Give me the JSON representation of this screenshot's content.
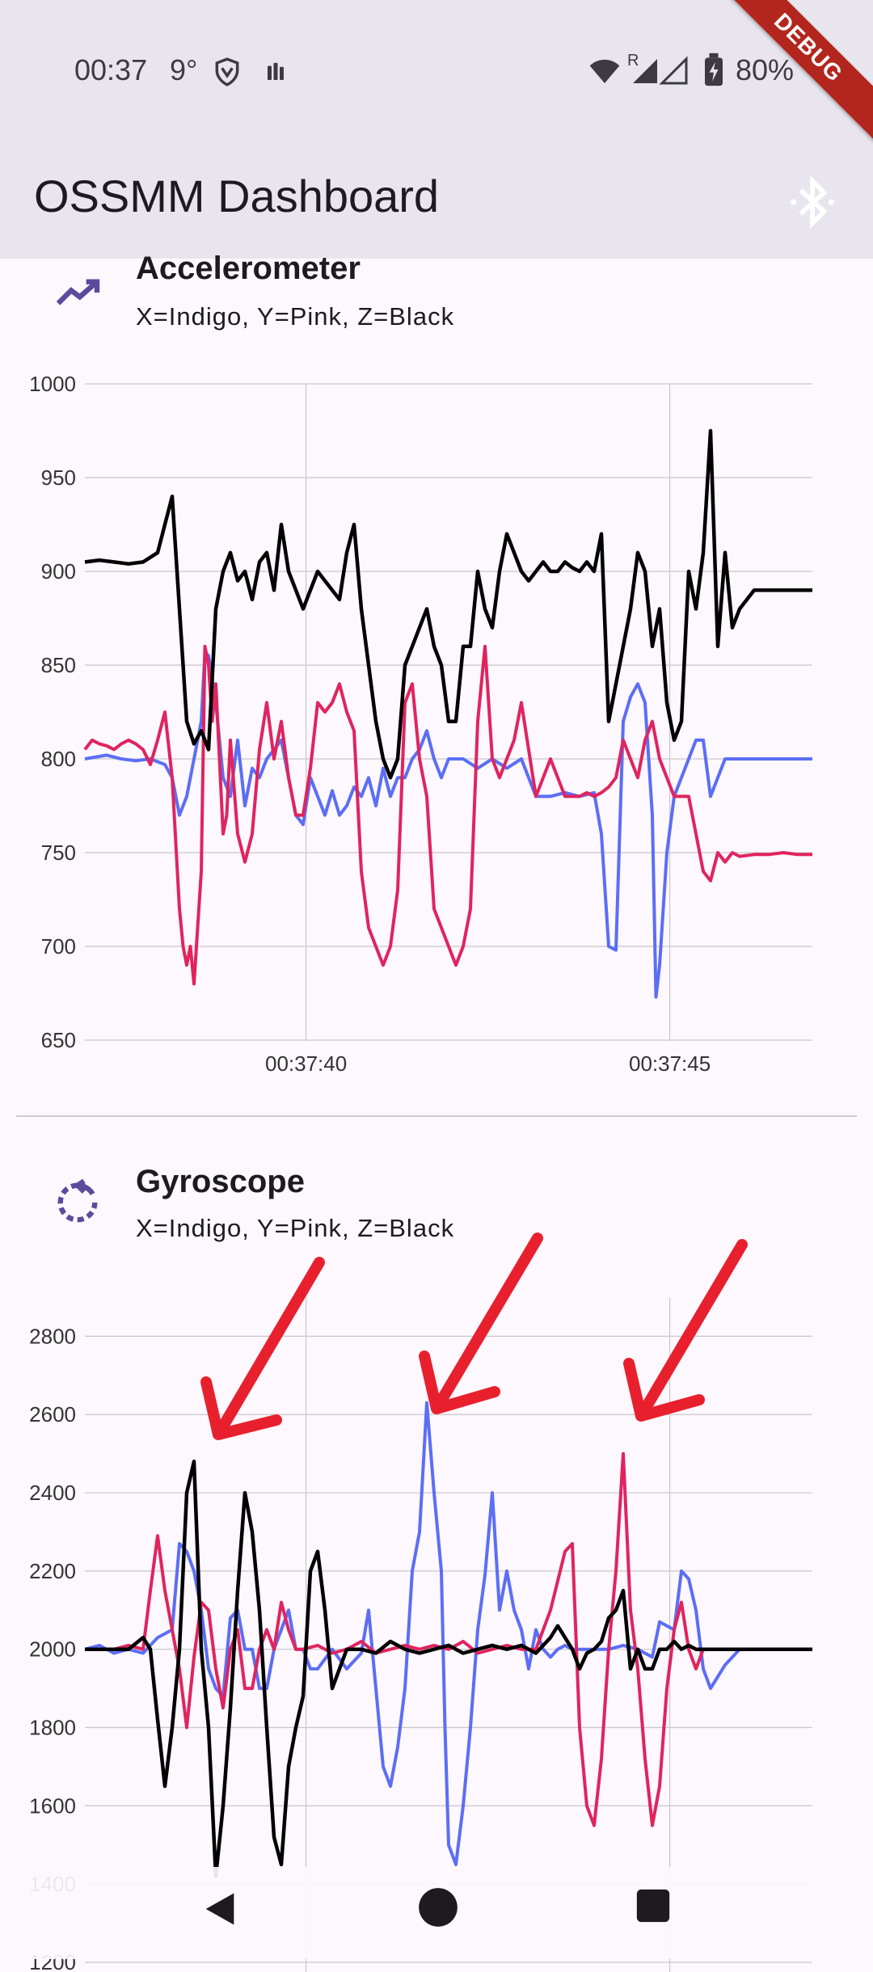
{
  "status_bar": {
    "time": "00:37",
    "temperature": "9°",
    "battery": "80%",
    "roaming": "R",
    "icons": [
      "shield-icon",
      "app-icon",
      "wifi-icon",
      "signal-icon",
      "battery-icon"
    ]
  },
  "debug_banner": "DEBUG",
  "app_bar": {
    "title": "OSSMM Dashboard",
    "action_icon": "bluetooth-icon"
  },
  "accelerometer": {
    "title": "Accelerometer",
    "subtitle": "X=Indigo, Y=Pink, Z=Black",
    "icon": "trending-up-icon"
  },
  "gyroscope": {
    "title": "Gyroscope",
    "subtitle": "X=Indigo, Y=Pink, Z=Black",
    "icon": "rotate-icon"
  },
  "colors": {
    "x": "#5b6ef5",
    "y": "#e0245e",
    "z": "#000000",
    "arrow": "#e8202e",
    "accent": "#5c4a9c"
  },
  "chart_data": [
    {
      "type": "line",
      "title": "Accelerometer",
      "ylim": [
        650,
        1000
      ],
      "yticks": [
        650,
        700,
        750,
        800,
        850,
        900,
        950,
        1000
      ],
      "xlim": [
        0,
        100
      ],
      "xticks": [
        {
          "x": 30.4,
          "label": "00:37:40"
        },
        {
          "x": 80.4,
          "label": "00:37:45"
        }
      ],
      "grid": true,
      "series": [
        {
          "name": "X",
          "color": "#5b6ef5",
          "x": [
            0,
            3,
            5,
            7,
            9,
            11,
            12,
            13,
            14,
            15,
            16,
            16.5,
            17,
            18,
            19,
            20,
            21,
            22,
            23,
            24,
            25,
            26,
            27,
            28,
            29,
            30,
            31,
            32,
            33,
            34,
            35,
            36,
            37,
            38,
            39,
            40,
            41,
            42,
            43,
            44,
            45,
            46,
            47,
            48,
            49,
            50,
            52,
            54,
            56,
            58,
            60,
            62,
            64,
            66,
            68,
            70,
            71,
            72,
            73,
            74,
            75,
            76,
            77,
            78,
            78.5,
            79,
            80,
            81,
            82,
            83,
            84,
            85,
            86,
            88,
            90,
            95,
            100
          ],
          "y": [
            800,
            802,
            800,
            799,
            800,
            797,
            790,
            770,
            780,
            800,
            820,
            857,
            855,
            830,
            790,
            780,
            810,
            775,
            795,
            790,
            800,
            805,
            810,
            790,
            770,
            765,
            790,
            780,
            770,
            783,
            770,
            775,
            785,
            780,
            790,
            775,
            795,
            780,
            790,
            790,
            800,
            805,
            815,
            800,
            790,
            800,
            800,
            795,
            800,
            795,
            800,
            780,
            780,
            782,
            780,
            782,
            760,
            700,
            698,
            820,
            833,
            840,
            830,
            770,
            673,
            690,
            750,
            780,
            790,
            800,
            810,
            810,
            780,
            800,
            800,
            800,
            800
          ]
        },
        {
          "name": "Y",
          "color": "#e0245e",
          "x": [
            0,
            1,
            2,
            3,
            4,
            5,
            6,
            7,
            8,
            9,
            10,
            11,
            12,
            13,
            13.5,
            14,
            14.5,
            15,
            16,
            16.5,
            17,
            17.5,
            18,
            19,
            19.5,
            20,
            21,
            22,
            23,
            24,
            25,
            26,
            27,
            28,
            29,
            30,
            31,
            32,
            33,
            34,
            35,
            36,
            37,
            38,
            39,
            40,
            41,
            42,
            43,
            44,
            45,
            46,
            47,
            48,
            49,
            50,
            51,
            52,
            53,
            54,
            55,
            56,
            57,
            58,
            59,
            60,
            61,
            62,
            63,
            64,
            65,
            66,
            67,
            68,
            69,
            70,
            71,
            72,
            73,
            74,
            75,
            76,
            77,
            78,
            79,
            80,
            81,
            82,
            83,
            84,
            85,
            86,
            87,
            88,
            89,
            90,
            92,
            94,
            96,
            98,
            100
          ],
          "y": [
            805,
            810,
            808,
            807,
            805,
            808,
            810,
            808,
            805,
            797,
            810,
            825,
            790,
            720,
            700,
            690,
            700,
            680,
            740,
            860,
            850,
            820,
            840,
            760,
            770,
            810,
            760,
            745,
            760,
            805,
            830,
            800,
            820,
            790,
            770,
            770,
            795,
            830,
            825,
            830,
            840,
            825,
            815,
            740,
            710,
            700,
            690,
            700,
            730,
            830,
            840,
            800,
            780,
            720,
            710,
            700,
            690,
            700,
            720,
            820,
            860,
            800,
            790,
            800,
            810,
            830,
            805,
            780,
            790,
            800,
            790,
            780,
            780,
            780,
            782,
            780,
            782,
            785,
            790,
            810,
            800,
            790,
            810,
            820,
            800,
            790,
            780,
            780,
            780,
            760,
            740,
            735,
            750,
            745,
            750,
            748,
            749,
            749,
            750,
            749,
            749
          ]
        },
        {
          "name": "Z",
          "color": "#000000",
          "x": [
            0,
            2,
            4,
            6,
            8,
            10,
            12,
            14,
            15,
            16,
            17,
            18,
            19,
            20,
            21,
            22,
            23,
            24,
            25,
            26,
            27,
            28,
            29,
            30,
            31,
            32,
            33,
            34,
            35,
            36,
            37,
            38,
            39,
            40,
            41,
            42,
            43,
            44,
            45,
            46,
            47,
            48,
            49,
            50,
            51,
            52,
            53,
            54,
            55,
            56,
            57,
            58,
            59,
            60,
            61,
            62,
            63,
            64,
            65,
            66,
            67,
            68,
            69,
            70,
            71,
            72,
            73,
            74,
            75,
            76,
            77,
            78,
            79,
            80,
            81,
            82,
            83,
            84,
            85,
            86,
            87,
            88,
            89,
            90,
            92,
            95,
            98,
            100
          ],
          "y": [
            905,
            906,
            905,
            904,
            905,
            910,
            940,
            820,
            808,
            815,
            805,
            880,
            900,
            910,
            895,
            900,
            885,
            905,
            910,
            890,
            925,
            900,
            890,
            880,
            890,
            900,
            895,
            890,
            885,
            910,
            925,
            880,
            850,
            820,
            800,
            790,
            800,
            850,
            860,
            870,
            880,
            860,
            850,
            820,
            820,
            860,
            860,
            900,
            880,
            870,
            900,
            920,
            910,
            900,
            895,
            900,
            905,
            900,
            900,
            905,
            902,
            900,
            905,
            900,
            920,
            820,
            840,
            860,
            880,
            910,
            900,
            860,
            880,
            830,
            810,
            820,
            900,
            880,
            910,
            975,
            860,
            910,
            870,
            880,
            890,
            890,
            890,
            890
          ]
        }
      ]
    },
    {
      "type": "line",
      "title": "Gyroscope",
      "ylim": [
        1200,
        2900
      ],
      "yticks": [
        1200,
        1400,
        1600,
        1800,
        2000,
        2200,
        2400,
        2600,
        2800
      ],
      "xlim": [
        0,
        100
      ],
      "xticks": [
        {
          "x": 30.4,
          "label": ""
        },
        {
          "x": 80.4,
          "label": ""
        }
      ],
      "grid": true,
      "series": [
        {
          "name": "X",
          "color": "#5b6ef5",
          "x": [
            0,
            2,
            4,
            6,
            8,
            10,
            12,
            13,
            14,
            15,
            16,
            17,
            18,
            19,
            20,
            21,
            22,
            23,
            24,
            25,
            26,
            27,
            28,
            29,
            30,
            31,
            32,
            34,
            36,
            38,
            39,
            40,
            41,
            42,
            43,
            44,
            45,
            46,
            47,
            48,
            49,
            49.5,
            50,
            51,
            52,
            53,
            54,
            55,
            56,
            57,
            58,
            59,
            60,
            61,
            62,
            63,
            64,
            65,
            66,
            67,
            68,
            70,
            72,
            74,
            76,
            78,
            79,
            80,
            81,
            82,
            83,
            84,
            85,
            86,
            88,
            90,
            95,
            100
          ],
          "y": [
            2000,
            2010,
            1990,
            2000,
            1990,
            2030,
            2050,
            2270,
            2250,
            2200,
            2100,
            1950,
            1900,
            1880,
            2080,
            2100,
            2000,
            2000,
            1900,
            1900,
            2000,
            2050,
            2100,
            2000,
            2000,
            1950,
            1950,
            2000,
            1950,
            1990,
            2100,
            1900,
            1700,
            1650,
            1750,
            1900,
            2200,
            2300,
            2630,
            2400,
            2200,
            1800,
            1500,
            1450,
            1600,
            1800,
            2050,
            2190,
            2400,
            2100,
            2200,
            2100,
            2050,
            1950,
            2050,
            2000,
            1980,
            2000,
            2010,
            2000,
            2000,
            2000,
            2000,
            2010,
            2000,
            1980,
            2070,
            2060,
            2050,
            2200,
            2180,
            2100,
            1950,
            1900,
            1960,
            2000,
            2000,
            2000
          ]
        },
        {
          "name": "Y",
          "color": "#e0245e",
          "x": [
            0,
            2,
            4,
            6,
            8,
            9,
            10,
            11,
            12,
            13,
            14,
            15,
            16,
            17,
            18,
            19,
            20,
            21,
            22,
            23,
            24,
            25,
            26,
            27,
            28,
            29,
            30,
            32,
            34,
            36,
            38,
            40,
            42,
            44,
            46,
            48,
            50,
            52,
            54,
            56,
            58,
            60,
            62,
            64,
            66,
            67,
            68,
            69,
            70,
            71,
            72,
            73,
            74,
            75,
            76,
            77,
            78,
            79,
            80,
            81,
            82,
            83,
            84,
            85,
            86,
            88,
            90,
            95,
            100
          ],
          "y": [
            2000,
            2000,
            2000,
            2010,
            2000,
            2150,
            2290,
            2150,
            2050,
            1950,
            1800,
            1980,
            2120,
            2100,
            1950,
            1850,
            2000,
            2050,
            1900,
            1900,
            2000,
            2050,
            2000,
            2120,
            2050,
            2000,
            2000,
            2010,
            1990,
            2000,
            2020,
            1990,
            2000,
            2010,
            2000,
            2010,
            2000,
            2020,
            1990,
            2000,
            2010,
            2000,
            2000,
            2100,
            2250,
            2270,
            1800,
            1600,
            1550,
            1720,
            2000,
            2200,
            2500,
            2100,
            1950,
            1720,
            1550,
            1650,
            1900,
            2050,
            2120,
            2000,
            1950,
            2000,
            2000,
            2000,
            2000,
            2000,
            2000
          ]
        },
        {
          "name": "Z",
          "color": "#000000",
          "x": [
            0,
            3,
            6,
            8,
            9,
            10,
            11,
            12,
            13,
            14,
            15,
            16,
            17,
            18,
            19,
            20,
            21,
            22,
            23,
            24,
            25,
            26,
            27,
            28,
            29,
            30,
            31,
            32,
            33,
            34,
            35,
            36,
            38,
            40,
            42,
            44,
            46,
            48,
            50,
            52,
            54,
            56,
            58,
            60,
            62,
            64,
            65,
            66,
            67,
            68,
            69,
            70,
            71,
            72,
            73,
            74,
            75,
            76,
            77,
            78,
            79,
            80,
            81,
            82,
            83,
            84,
            86,
            88,
            90,
            95,
            100
          ],
          "y": [
            2000,
            2000,
            2000,
            2030,
            2000,
            1820,
            1650,
            1800,
            2000,
            2400,
            2480,
            2000,
            1800,
            1420,
            1600,
            1850,
            2150,
            2400,
            2300,
            2100,
            1800,
            1520,
            1450,
            1700,
            1800,
            1880,
            2200,
            2250,
            2100,
            1900,
            1950,
            2000,
            2000,
            1990,
            2020,
            2000,
            1990,
            2000,
            2010,
            1990,
            2000,
            2010,
            2000,
            2010,
            1990,
            2030,
            2060,
            2030,
            2000,
            1950,
            1990,
            2000,
            2020,
            2080,
            2100,
            2150,
            1950,
            2000,
            1950,
            1950,
            2000,
            2000,
            2020,
            2000,
            2010,
            2000,
            2000,
            2000,
            2000,
            2000,
            2000
          ]
        }
      ]
    }
  ]
}
